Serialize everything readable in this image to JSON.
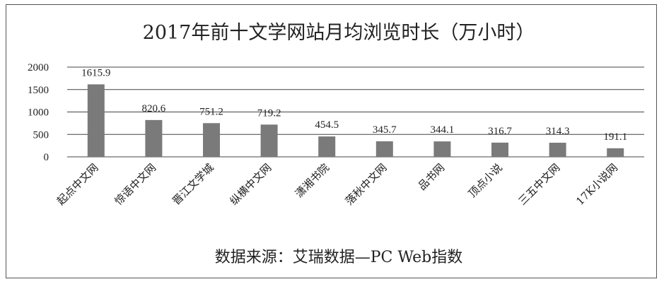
{
  "chart_data": {
    "type": "bar",
    "title": "2017年前十文学网站月均浏览时长（万小时）",
    "categories": [
      "起点中文网",
      "惊语中文网",
      "晋江文学城",
      "纵横中文网",
      "潇湘书院",
      "落秋中文网",
      "品书网",
      "顶点小说",
      "三五中文网",
      "17K小说网"
    ],
    "values": [
      1615.9,
      820.6,
      751.2,
      719.2,
      454.5,
      345.7,
      344.1,
      316.7,
      314.3,
      191.1
    ],
    "value_labels": [
      "1615.9",
      "820.6",
      "751.2",
      "719.2",
      "454.5",
      "345.7",
      "344.1",
      "316.7",
      "314.3",
      "191.1"
    ],
    "yticks": [
      0,
      500,
      1000,
      1500,
      2000
    ],
    "ylim": [
      0,
      2000
    ],
    "xlabel": "",
    "ylabel": "",
    "grid": true,
    "legend": "none",
    "bar_color": "#7a7a7a",
    "source": "数据来源：艾瑞数据—PC Web指数"
  }
}
